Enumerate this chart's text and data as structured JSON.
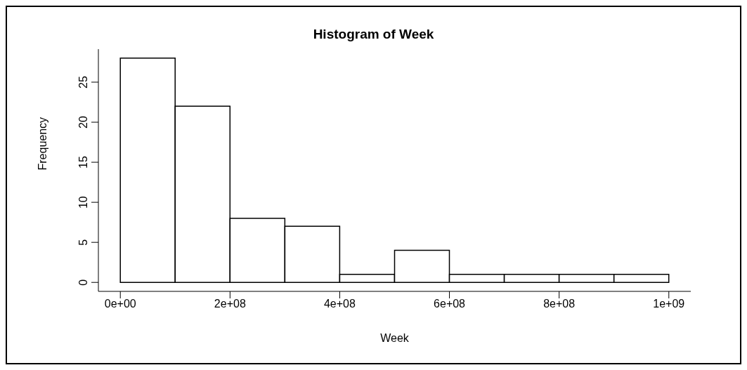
{
  "chart_data": {
    "type": "histogram",
    "title": "Histogram of Week",
    "xlabel": "Week",
    "ylabel": "Frequency",
    "bins": [
      0,
      100000000,
      200000000,
      300000000,
      400000000,
      500000000,
      600000000,
      700000000,
      800000000,
      900000000,
      1000000000
    ],
    "values": [
      28,
      22,
      8,
      7,
      1,
      4,
      1,
      1,
      1,
      1
    ],
    "color": "#ffffff",
    "xlim": [
      -40000000,
      1040000000
    ],
    "xticks": [
      {
        "value": 0,
        "label": "0e+00"
      },
      {
        "value": 200000000,
        "label": "2e+08"
      },
      {
        "value": 400000000,
        "label": "4e+08"
      },
      {
        "value": 600000000,
        "label": "6e+08"
      },
      {
        "value": 800000000,
        "label": "8e+08"
      },
      {
        "value": 1000000000,
        "label": "1e+09"
      }
    ],
    "ylim": [
      -1.12,
      29.12
    ],
    "yticks": [
      0,
      5,
      10,
      15,
      20,
      25
    ],
    "grid": false,
    "legend": false
  }
}
